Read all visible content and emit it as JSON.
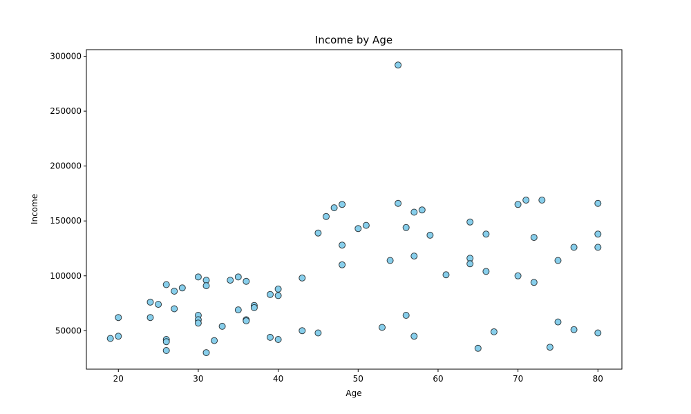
{
  "chart_data": {
    "type": "scatter",
    "title": "Income by Age",
    "xlabel": "Age",
    "ylabel": "Income",
    "xlim": [
      16,
      83
    ],
    "ylim": [
      15000,
      306000
    ],
    "xticks": [
      20,
      30,
      40,
      50,
      60,
      70,
      80
    ],
    "yticks": [
      50000,
      100000,
      150000,
      200000,
      250000,
      300000
    ],
    "grid": false,
    "marker_color": "#87ceeb",
    "marker_edge_color": "#000000",
    "points": [
      {
        "x": 19,
        "y": 43000
      },
      {
        "x": 20,
        "y": 45000
      },
      {
        "x": 20,
        "y": 62000
      },
      {
        "x": 24,
        "y": 76000
      },
      {
        "x": 24,
        "y": 62000
      },
      {
        "x": 25,
        "y": 74000
      },
      {
        "x": 26,
        "y": 92000
      },
      {
        "x": 26,
        "y": 42000
      },
      {
        "x": 26,
        "y": 40000
      },
      {
        "x": 26,
        "y": 32000
      },
      {
        "x": 27,
        "y": 86000
      },
      {
        "x": 27,
        "y": 70000
      },
      {
        "x": 28,
        "y": 89000
      },
      {
        "x": 30,
        "y": 99000
      },
      {
        "x": 30,
        "y": 64000
      },
      {
        "x": 30,
        "y": 60000
      },
      {
        "x": 30,
        "y": 57000
      },
      {
        "x": 31,
        "y": 96000
      },
      {
        "x": 31,
        "y": 91000
      },
      {
        "x": 31,
        "y": 30000
      },
      {
        "x": 32,
        "y": 41000
      },
      {
        "x": 33,
        "y": 54000
      },
      {
        "x": 34,
        "y": 96000
      },
      {
        "x": 35,
        "y": 99000
      },
      {
        "x": 35,
        "y": 69000
      },
      {
        "x": 36,
        "y": 95000
      },
      {
        "x": 36,
        "y": 60000
      },
      {
        "x": 36,
        "y": 59000
      },
      {
        "x": 37,
        "y": 73000
      },
      {
        "x": 37,
        "y": 71000
      },
      {
        "x": 39,
        "y": 83000
      },
      {
        "x": 39,
        "y": 44000
      },
      {
        "x": 40,
        "y": 88000
      },
      {
        "x": 40,
        "y": 82000
      },
      {
        "x": 40,
        "y": 42000
      },
      {
        "x": 43,
        "y": 98000
      },
      {
        "x": 43,
        "y": 50000
      },
      {
        "x": 45,
        "y": 139000
      },
      {
        "x": 45,
        "y": 48000
      },
      {
        "x": 46,
        "y": 154000
      },
      {
        "x": 47,
        "y": 162000
      },
      {
        "x": 48,
        "y": 165000
      },
      {
        "x": 48,
        "y": 128000
      },
      {
        "x": 48,
        "y": 110000
      },
      {
        "x": 50,
        "y": 143000
      },
      {
        "x": 51,
        "y": 146000
      },
      {
        "x": 53,
        "y": 53000
      },
      {
        "x": 54,
        "y": 114000
      },
      {
        "x": 55,
        "y": 292000
      },
      {
        "x": 55,
        "y": 166000
      },
      {
        "x": 56,
        "y": 144000
      },
      {
        "x": 56,
        "y": 64000
      },
      {
        "x": 57,
        "y": 158000
      },
      {
        "x": 57,
        "y": 118000
      },
      {
        "x": 57,
        "y": 45000
      },
      {
        "x": 58,
        "y": 160000
      },
      {
        "x": 59,
        "y": 137000
      },
      {
        "x": 61,
        "y": 101000
      },
      {
        "x": 64,
        "y": 149000
      },
      {
        "x": 64,
        "y": 116000
      },
      {
        "x": 64,
        "y": 111000
      },
      {
        "x": 65,
        "y": 34000
      },
      {
        "x": 66,
        "y": 138000
      },
      {
        "x": 66,
        "y": 104000
      },
      {
        "x": 67,
        "y": 49000
      },
      {
        "x": 70,
        "y": 165000
      },
      {
        "x": 70,
        "y": 100000
      },
      {
        "x": 71,
        "y": 169000
      },
      {
        "x": 72,
        "y": 135000
      },
      {
        "x": 72,
        "y": 94000
      },
      {
        "x": 73,
        "y": 169000
      },
      {
        "x": 74,
        "y": 35000
      },
      {
        "x": 75,
        "y": 114000
      },
      {
        "x": 75,
        "y": 58000
      },
      {
        "x": 77,
        "y": 126000
      },
      {
        "x": 77,
        "y": 51000
      },
      {
        "x": 80,
        "y": 166000
      },
      {
        "x": 80,
        "y": 138000
      },
      {
        "x": 80,
        "y": 126000
      },
      {
        "x": 80,
        "y": 48000
      }
    ]
  }
}
